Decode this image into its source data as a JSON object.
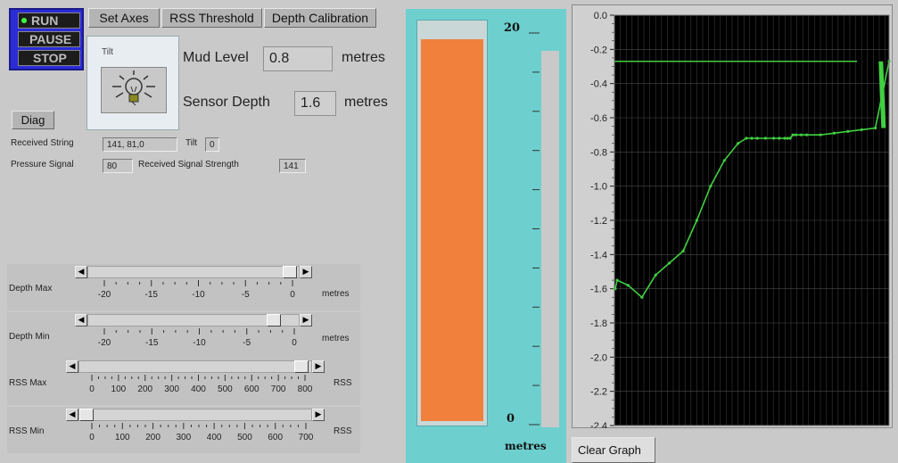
{
  "run_panel": {
    "run_label": "RUN",
    "pause_label": "PAUSE",
    "stop_label": "STOP"
  },
  "toolbar": {
    "set_axes_label": "Set Axes",
    "rss_threshold_label": "RSS Threshold",
    "depth_calibration_label": "Depth Calibration"
  },
  "tilt": {
    "title": "Tilt"
  },
  "mud_level": {
    "label": "Mud Level",
    "value": "0.8",
    "unit": "metres"
  },
  "sensor_depth": {
    "label": "Sensor Depth",
    "value": "1.6",
    "unit": "metres"
  },
  "diag_label": "Diag",
  "received_string": {
    "label": "Received String",
    "value": "141,  81,0",
    "tilt_label": "Tilt",
    "tilt_value": "0"
  },
  "pressure_signal": {
    "label": "Pressure Signal",
    "value": "80",
    "rss_label": "Received Signal Strength",
    "rss_value": "141"
  },
  "sliders": [
    {
      "name": "Depth Max",
      "unit": "metres",
      "ticks": [
        "-20",
        "-15",
        "-10",
        "-5",
        "0"
      ],
      "value": 0
    },
    {
      "name": "Depth Min",
      "unit": "metres",
      "ticks": [
        "-20",
        "-15",
        "-10",
        "-5",
        "0"
      ],
      "value": -1
    },
    {
      "name": "RSS Max",
      "unit": "RSS",
      "ticks": [
        "0",
        "100",
        "200",
        "300",
        "400",
        "500",
        "600",
        "700",
        "800"
      ],
      "value": 800
    },
    {
      "name": "RSS Min",
      "unit": "RSS",
      "ticks": [
        "0",
        "100",
        "200",
        "300",
        "400",
        "500",
        "600",
        "700"
      ],
      "value": 0
    }
  ],
  "level_bar": {
    "top_label": "20",
    "bottom_label": "0",
    "unit": "metres",
    "fill_color": "#f0803c",
    "frame_color": "#6ecfcf"
  },
  "graph": {
    "y_ticks": [
      "0.0",
      "-0.2",
      "-0.4",
      "-0.6",
      "-0.8",
      "-1.0",
      "-1.2",
      "-1.4",
      "-1.6",
      "-1.8",
      "-2.0",
      "-2.2",
      "-2.4"
    ],
    "clear_label": "Clear Graph",
    "line_color": "#40d040",
    "background": "#000000"
  },
  "chart_data": {
    "type": "line",
    "title": "",
    "xlabel": "",
    "ylabel": "",
    "ylim": [
      -2.4,
      0.0
    ],
    "grid": true,
    "series": [
      {
        "x": [
          0,
          0.3,
          1,
          5,
          10,
          15,
          20,
          25,
          30,
          35,
          40,
          45,
          48,
          50,
          52,
          55,
          58,
          60,
          62,
          63,
          64,
          65,
          66,
          68,
          70,
          75,
          80,
          85,
          90,
          95,
          100
        ],
        "values": [
          -1.6,
          -1.6,
          -1.55,
          -1.58,
          -1.65,
          -1.52,
          -1.45,
          -1.38,
          -1.2,
          -1.0,
          -0.85,
          -0.75,
          -0.72,
          -0.72,
          -0.72,
          -0.72,
          -0.72,
          -0.72,
          -0.72,
          -0.72,
          -0.72,
          -0.7,
          -0.7,
          -0.7,
          -0.7,
          -0.7,
          -0.69,
          -0.68,
          -0.67,
          -0.66,
          -0.27
        ]
      }
    ],
    "reference_line": -0.27
  }
}
